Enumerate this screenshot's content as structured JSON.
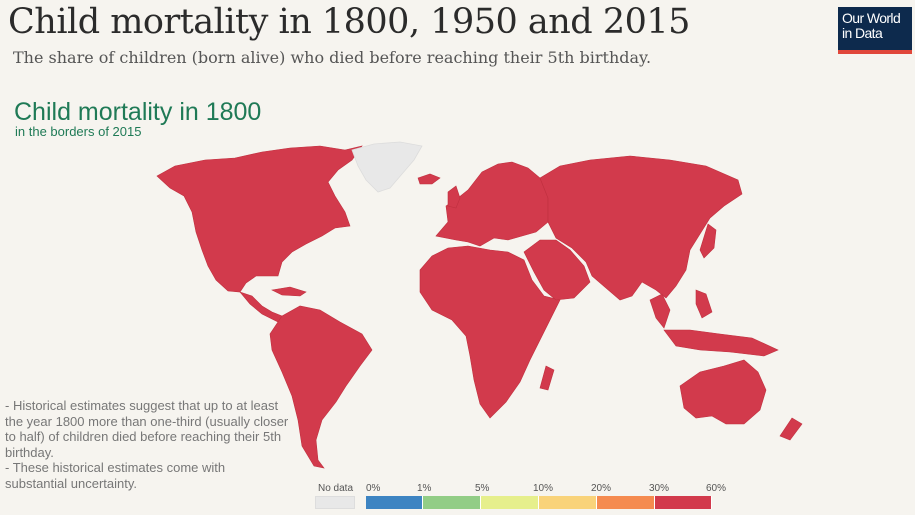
{
  "header": {
    "title": "Child mortality in 1800, 1950 and 2015",
    "subtitle": "The share of children (born alive) who died before reaching their 5th birthday."
  },
  "logo": {
    "line1": "Our World",
    "line2": "in Data"
  },
  "map": {
    "title": "Child mortality in 1800",
    "subtitle": "in the borders of 2015",
    "fill_color": "#d23a4c",
    "nodata_color": "#e8e8e8",
    "regions": [
      {
        "name": "North America",
        "bin": "30%-60%"
      },
      {
        "name": "South America",
        "bin": "30%-60%"
      },
      {
        "name": "Europe",
        "bin": "30%-60%"
      },
      {
        "name": "Africa",
        "bin": "30%-60%"
      },
      {
        "name": "Asia",
        "bin": "30%-60%"
      },
      {
        "name": "Oceania",
        "bin": "30%-60%"
      },
      {
        "name": "Greenland",
        "bin": "No data"
      }
    ]
  },
  "note": {
    "line1": "- Historical estimates suggest that up to at least the year 1800 more than one-third (usually closer to half) of children died before reaching their 5th birthday.",
    "line2": "- These historical estimates come with substantial uncertainty."
  },
  "legend": {
    "nodata_label": "No data",
    "ticks": [
      "0%",
      "1%",
      "5%",
      "10%",
      "20%",
      "30%",
      "60%"
    ],
    "colors": [
      "#3d84c2",
      "#92cd86",
      "#e6ef8c",
      "#f9d37a",
      "#f58b50",
      "#d23a4c"
    ]
  }
}
